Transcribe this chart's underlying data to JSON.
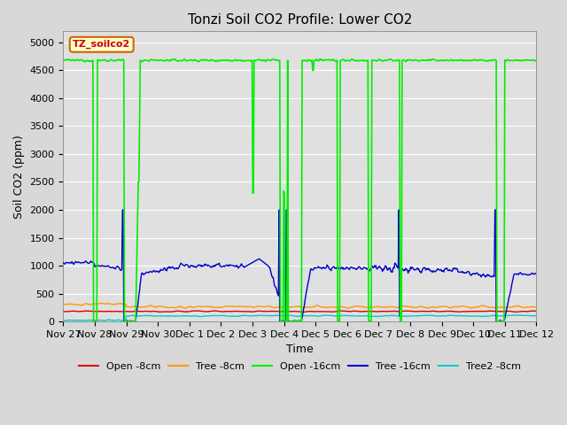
{
  "title": "Tonzi Soil CO2 Profile: Lower CO2",
  "ylabel": "Soil CO2 (ppm)",
  "xlabel": "Time",
  "watermark": "TZ_soilco2",
  "ylim": [
    0,
    5200
  ],
  "yticks": [
    0,
    500,
    1000,
    1500,
    2000,
    2500,
    3000,
    3500,
    4000,
    4500,
    5000
  ],
  "xtick_labels": [
    "Nov 27",
    "Nov 28",
    "Nov 29",
    "Nov 30",
    "Dec 1",
    "Dec 2",
    "Dec 3",
    "Dec 4",
    "Dec 5",
    "Dec 6",
    "Dec 7",
    "Dec 8",
    "Dec 9",
    "Dec 10",
    "Dec 11",
    "Dec 12"
  ],
  "series": {
    "Open_8cm": {
      "color": "#dd0000",
      "label": "Open -8cm",
      "lw": 1.0
    },
    "Tree_8cm": {
      "color": "#ff9900",
      "label": "Tree -8cm",
      "lw": 1.0
    },
    "Open_16cm": {
      "color": "#00ee00",
      "label": "Open -16cm",
      "lw": 1.2
    },
    "Tree_16cm": {
      "color": "#0000cc",
      "label": "Tree -16cm",
      "lw": 1.0
    },
    "Tree2_8cm": {
      "color": "#00cccc",
      "label": "Tree2 -8cm",
      "lw": 1.0
    }
  },
  "fig_bg_color": "#d8d8d8",
  "plot_bg": "#e0e0e0",
  "grid_color": "#ffffff",
  "title_fontsize": 11,
  "axis_label_fontsize": 9,
  "tick_fontsize": 8,
  "legend_fontsize": 8,
  "green_high": 4680,
  "green_low": 0
}
